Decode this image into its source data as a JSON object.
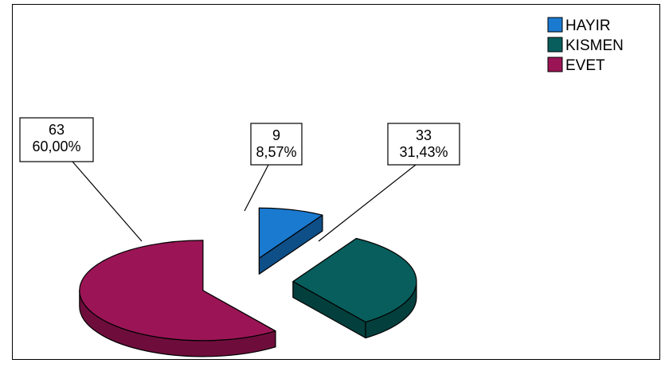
{
  "chart_data": {
    "type": "pie",
    "style": "3d-exploded",
    "slices": [
      {
        "label": "HAYIR",
        "count": 9,
        "percent_text": "8,57%",
        "count_text": "9",
        "percent": 8.57,
        "color": "#1a7ad0",
        "side": "#0f4f88"
      },
      {
        "label": "KISMEN",
        "count": 33,
        "percent_text": "31,43%",
        "count_text": "33",
        "percent": 31.43,
        "color": "#075e5c",
        "side": "#033f3d"
      },
      {
        "label": "EVET",
        "count": 63,
        "percent_text": "60,00%",
        "count_text": "63",
        "percent": 60.0,
        "color": "#9b1556",
        "side": "#6e0d3c"
      }
    ],
    "legend": {
      "position": "top-right",
      "items": [
        "HAYIR",
        "KISMEN",
        "EVET"
      ]
    }
  }
}
